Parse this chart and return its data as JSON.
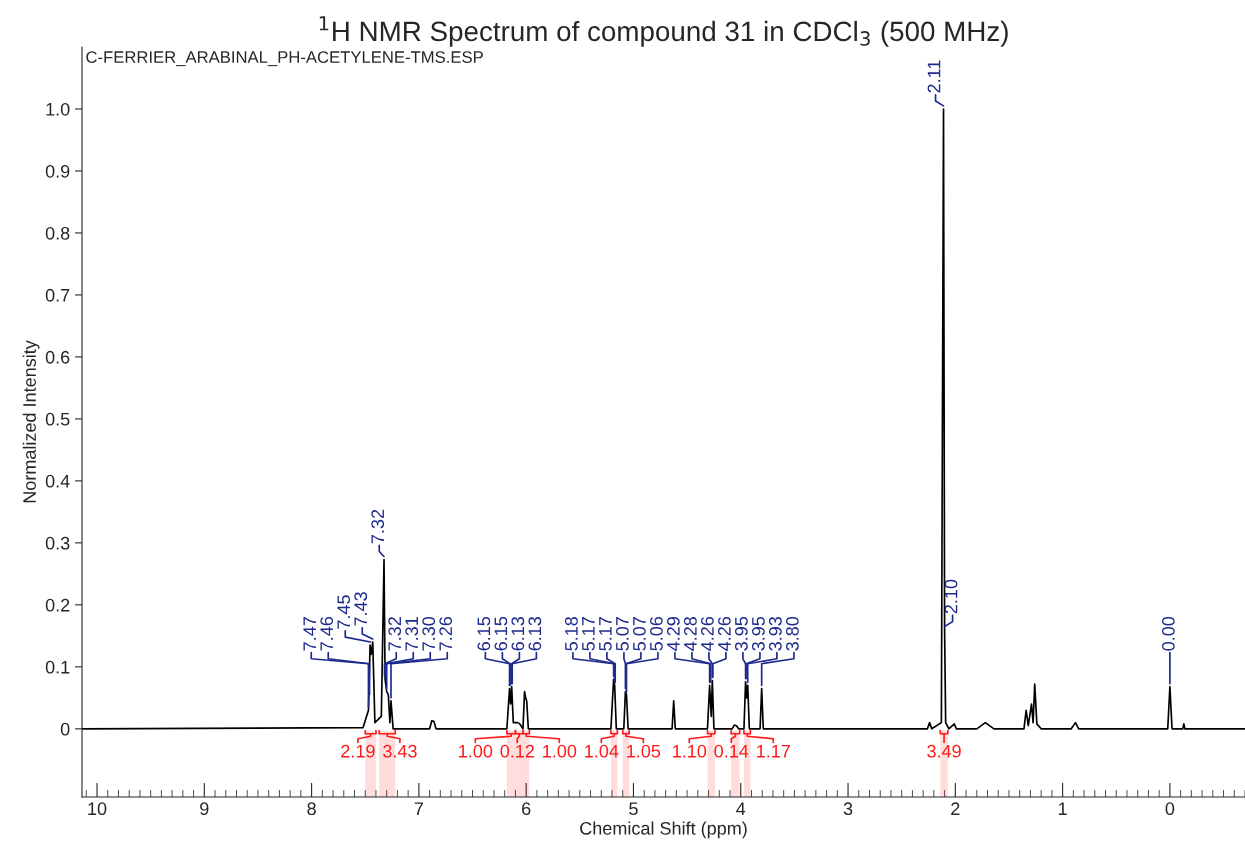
{
  "chart_data": {
    "type": "line",
    "title": "$^{1}$H NMR Spectrum of compound 31 in CDCl$_{3}$ (500 MHz)",
    "xlabel": "Chemical Shift (ppm)",
    "ylabel": "Normalized Intensity",
    "xlim": [
      10.14,
      -0.7
    ],
    "ylim": [
      -0.11,
      1.1
    ],
    "xticks": [
      10,
      9,
      8,
      7,
      6,
      5,
      4,
      3,
      2,
      1,
      0
    ],
    "yticks": [
      0,
      0.1,
      0.2,
      0.3,
      0.4,
      0.5,
      0.6,
      0.7,
      0.8,
      0.9,
      {
        "value": 1,
        "label": "1.0"
      }
    ],
    "grid": false,
    "series": [
      {
        "color": "#000000",
        "x": [
          10.14,
          7.52,
          7.47,
          7.455,
          7.445,
          7.43,
          7.41,
          7.35,
          7.325,
          7.315,
          7.3,
          7.285,
          7.27,
          7.26,
          7.24,
          6.9,
          6.88,
          6.86,
          6.84,
          6.18,
          6.155,
          6.145,
          6.135,
          6.12,
          6.08,
          6.06,
          6.03,
          6.015,
          6.005,
          5.995,
          5.98,
          5.21,
          5.185,
          5.175,
          5.16,
          5.09,
          5.075,
          5.065,
          5.05,
          4.64,
          4.625,
          4.61,
          4.31,
          4.29,
          4.275,
          4.265,
          4.25,
          4.08,
          4.06,
          4.04,
          4.02,
          3.97,
          3.955,
          3.945,
          3.935,
          3.92,
          3.82,
          3.805,
          3.79,
          2.26,
          2.24,
          2.22,
          2.13,
          2.11,
          2.1,
          2.09,
          2.06,
          2.01,
          1.99,
          1.8,
          1.72,
          1.64,
          1.36,
          1.34,
          1.32,
          1.29,
          1.275,
          1.26,
          1.24,
          1.2,
          0.92,
          0.88,
          0.85,
          0.02,
          0.0,
          -0.02,
          -0.12,
          -0.13,
          -0.14,
          -0.7
        ],
        "values": [
          0,
          0.002,
          0.03,
          0.135,
          0.12,
          0.14,
          0.01,
          0.02,
          0.273,
          0.08,
          0.06,
          0.055,
          0.01,
          0.045,
          0,
          0,
          0.013,
          0.012,
          0,
          0,
          0.065,
          0.04,
          0.068,
          0.01,
          0.01,
          0.008,
          0,
          0.06,
          0.05,
          0.045,
          0,
          0,
          0.08,
          0.07,
          0,
          0,
          0.06,
          0.055,
          0,
          0,
          0.045,
          0,
          0,
          0.07,
          0.02,
          0.078,
          0,
          0,
          0.006,
          0.005,
          0,
          0,
          0.076,
          0.05,
          0.07,
          0,
          0,
          0.065,
          0,
          0,
          0.01,
          0,
          0.01,
          1.0,
          0.16,
          0.01,
          0,
          0.008,
          0,
          0,
          0.01,
          0,
          0,
          0.03,
          0.005,
          0.04,
          0.01,
          0.072,
          0.008,
          0,
          0,
          0.01,
          0,
          0,
          0.068,
          0,
          0,
          0.008,
          0,
          0
        ]
      }
    ],
    "annotations": [
      "C-FERRIER_ARABINAL_PH-ACETYLENE-TMS.ESP",
      {
        "text": "7.47",
        "x": 7.47,
        "y": 0.03
      },
      {
        "text": "7.46",
        "x": 7.46,
        "y": 0.05
      },
      {
        "text": "7.45",
        "x": 7.45,
        "y": 0.135
      },
      {
        "text": "7.43",
        "x": 7.43,
        "y": 0.14
      },
      {
        "text": "7.32",
        "x": 7.325,
        "y": 0.273
      },
      {
        "text": "7.32",
        "x": 7.32,
        "y": 0.08
      },
      {
        "text": "7.31",
        "x": 7.31,
        "y": 0.08
      },
      {
        "text": "7.30",
        "x": 7.3,
        "y": 0.06
      },
      {
        "text": "7.26",
        "x": 7.26,
        "y": 0.045
      },
      {
        "text": "6.15",
        "x": 6.155,
        "y": 0.065
      },
      {
        "text": "6.15",
        "x": 6.15,
        "y": 0.065
      },
      {
        "text": "6.13",
        "x": 6.135,
        "y": 0.068
      },
      {
        "text": "6.13",
        "x": 6.13,
        "y": 0.068
      },
      {
        "text": "5.18",
        "x": 5.185,
        "y": 0.08
      },
      {
        "text": "5.17",
        "x": 5.175,
        "y": 0.07
      },
      {
        "text": "5.17",
        "x": 5.17,
        "y": 0.07
      },
      {
        "text": "5.07",
        "x": 5.075,
        "y": 0.06
      },
      {
        "text": "5.07",
        "x": 5.07,
        "y": 0.06
      },
      {
        "text": "5.06",
        "x": 5.065,
        "y": 0.055
      },
      {
        "text": "4.29",
        "x": 4.29,
        "y": 0.07
      },
      {
        "text": "4.28",
        "x": 4.28,
        "y": 0.07
      },
      {
        "text": "4.26",
        "x": 4.265,
        "y": 0.078
      },
      {
        "text": "4.26",
        "x": 4.26,
        "y": 0.078
      },
      {
        "text": "3.95",
        "x": 3.955,
        "y": 0.076
      },
      {
        "text": "3.95",
        "x": 3.95,
        "y": 0.076
      },
      {
        "text": "3.93",
        "x": 3.935,
        "y": 0.07
      },
      {
        "text": "3.80",
        "x": 3.805,
        "y": 0.065
      },
      {
        "text": "2.11",
        "x": 2.11,
        "y": 1.0
      },
      {
        "text": "2.10",
        "x": 2.1,
        "y": 0.16
      },
      {
        "text": "0.00",
        "x": 0.0,
        "y": 0.068
      }
    ],
    "bands": [
      {
        "axis": "x",
        "from": 7.5,
        "to": 7.4,
        "label": "2.19",
        "color": "#ff1a1a"
      },
      {
        "axis": "x",
        "from": 7.37,
        "to": 7.22,
        "label": "3.43",
        "color": "#ff1a1a"
      },
      {
        "axis": "x",
        "from": 6.18,
        "to": 6.1,
        "label": "1.00",
        "color": "#ff1a1a"
      },
      {
        "axis": "x",
        "from": 6.1,
        "to": 6.03,
        "label": "0.12",
        "color": "#ff1a1a"
      },
      {
        "axis": "x",
        "from": 6.03,
        "to": 5.97,
        "label": "1.00",
        "color": "#ff1a1a"
      },
      {
        "axis": "x",
        "from": 5.21,
        "to": 5.15,
        "label": "1.04",
        "color": "#ff1a1a"
      },
      {
        "axis": "x",
        "from": 5.1,
        "to": 5.04,
        "label": "1.05",
        "color": "#ff1a1a"
      },
      {
        "axis": "x",
        "from": 4.31,
        "to": 4.24,
        "label": "1.10",
        "color": "#ff1a1a"
      },
      {
        "axis": "x",
        "from": 4.09,
        "to": 4.01,
        "label": "0.14",
        "color": "#ff1a1a"
      },
      {
        "axis": "x",
        "from": 3.97,
        "to": 3.91,
        "label": "1.17",
        "color": "#ff1a1a"
      },
      {
        "axis": "x",
        "from": 2.14,
        "to": 2.07,
        "label": "3.49",
        "color": "#ff1a1a"
      }
    ]
  }
}
